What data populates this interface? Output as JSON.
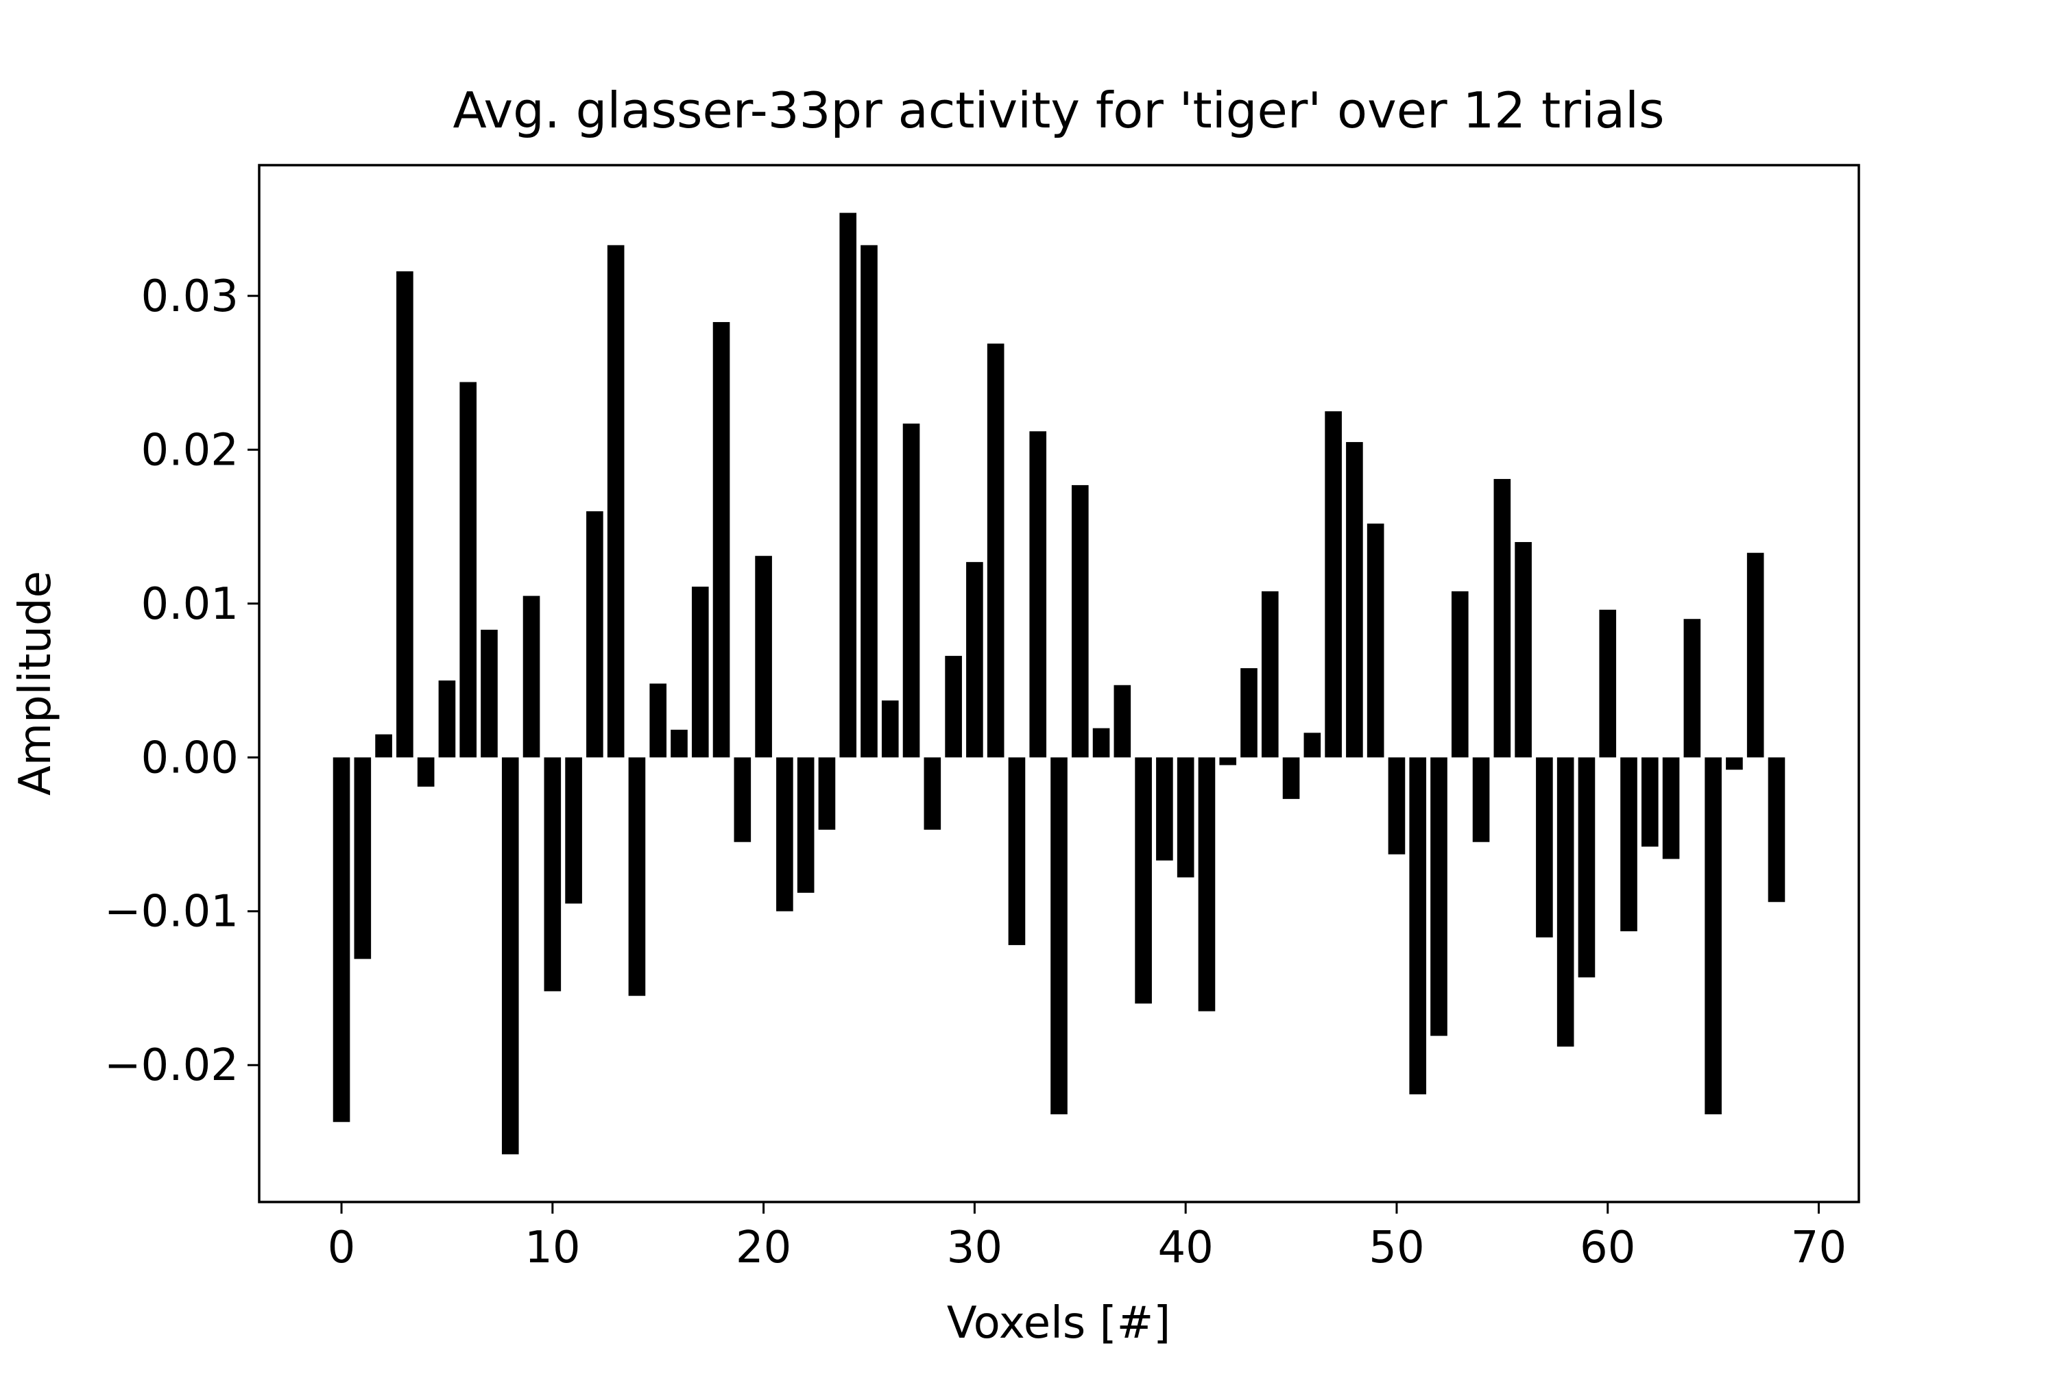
{
  "chart_data": {
    "type": "bar",
    "title": "Avg. glasser-33pr activity for 'tiger' over 12 trials",
    "xlabel": "Voxels [#]",
    "ylabel": "Amplitude",
    "xlim": [
      -3.9,
      71.9
    ],
    "ylim": [
      -0.0289,
      0.0385
    ],
    "xticks": [
      0,
      10,
      20,
      30,
      40,
      50,
      60,
      70
    ],
    "xtick_labels": [
      "0",
      "10",
      "20",
      "30",
      "40",
      "50",
      "60",
      "70"
    ],
    "yticks": [
      -0.02,
      -0.01,
      0.0,
      0.01,
      0.02,
      0.03
    ],
    "ytick_labels": [
      "−0.02",
      "−0.01",
      "0.00",
      "0.01",
      "0.02",
      "0.03"
    ],
    "grid": false,
    "bar_color": "#000000",
    "x": [
      0,
      1,
      2,
      3,
      4,
      5,
      6,
      7,
      8,
      9,
      10,
      11,
      12,
      13,
      14,
      15,
      16,
      17,
      18,
      19,
      20,
      21,
      22,
      23,
      24,
      25,
      26,
      27,
      28,
      29,
      30,
      31,
      32,
      33,
      34,
      35,
      36,
      37,
      38,
      39,
      40,
      41,
      42,
      43,
      44,
      45,
      46,
      47,
      48,
      49,
      50,
      51,
      52,
      53,
      54,
      55,
      56,
      57,
      58,
      59,
      60,
      61,
      62,
      63,
      64,
      65,
      66,
      67,
      68
    ],
    "values": [
      -0.0237,
      -0.0131,
      0.0015,
      0.0316,
      -0.0019,
      0.005,
      0.0244,
      0.0083,
      -0.0258,
      0.0105,
      -0.0152,
      -0.0095,
      0.016,
      0.0333,
      -0.0155,
      0.0048,
      0.0018,
      0.0111,
      0.0283,
      -0.0055,
      0.0131,
      -0.01,
      -0.0088,
      -0.0047,
      0.0354,
      0.0333,
      0.0037,
      0.0217,
      -0.0047,
      0.0066,
      0.0127,
      0.0269,
      -0.0122,
      0.0212,
      -0.0232,
      0.0177,
      0.0019,
      0.0047,
      -0.016,
      -0.0067,
      -0.0078,
      -0.0165,
      -0.0005,
      0.0058,
      0.0108,
      -0.0027,
      0.0016,
      0.0225,
      0.0205,
      0.0152,
      -0.0063,
      -0.0219,
      -0.0181,
      0.0108,
      -0.0055,
      0.0181,
      0.014,
      -0.0117,
      -0.0188,
      -0.0143,
      0.0096,
      -0.0113,
      -0.0058,
      -0.0066,
      0.009,
      -0.0232,
      -0.0008,
      0.0133,
      -0.0094
    ]
  }
}
